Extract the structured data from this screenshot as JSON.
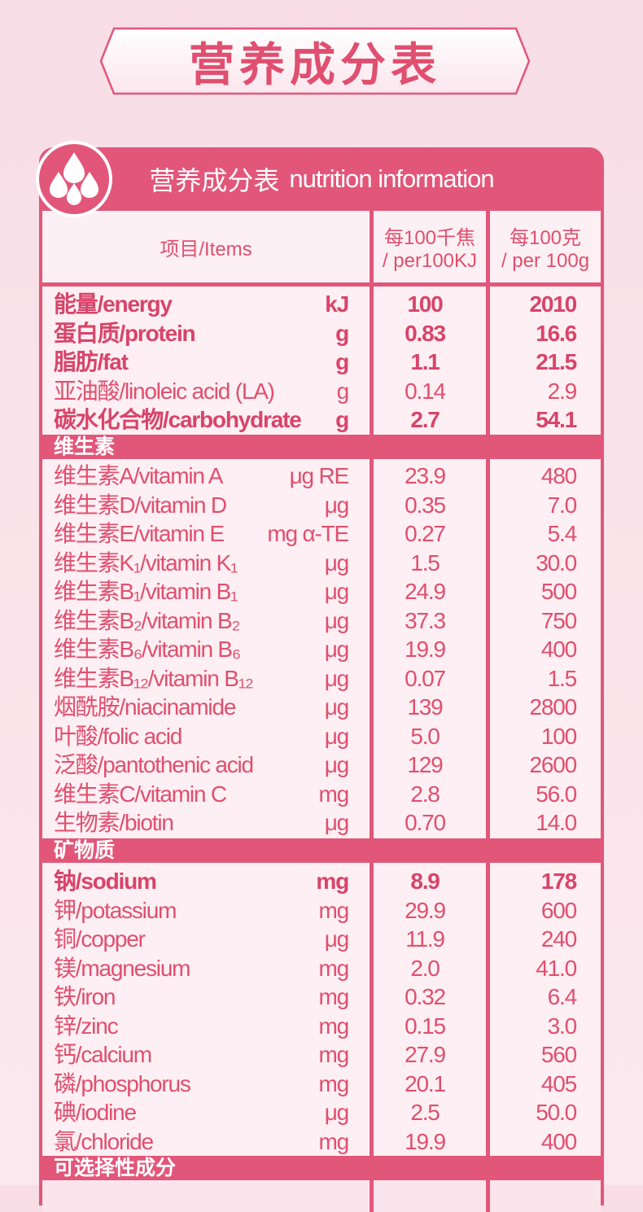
{
  "banner": {
    "title": "营养成分表"
  },
  "panel": {
    "title_cn": "营养成分表",
    "title_en": "nutrition information"
  },
  "columns": {
    "items": "项目/Items",
    "per_kj_line1": "每100千焦",
    "per_kj_line2": "/ per100KJ",
    "per_g_line1": "每100克",
    "per_g_line2": "/ per 100g"
  },
  "energy_rows": [
    {
      "name": "能量/energy",
      "unit": "kJ",
      "v1": "100",
      "v2": "2010",
      "bold": true
    },
    {
      "name": "蛋白质/protein",
      "unit": "g",
      "v1": "0.83",
      "v2": "16.6",
      "bold": true
    },
    {
      "name": "脂肪/fat",
      "unit": "g",
      "v1": "1.1",
      "v2": "21.5",
      "bold": true
    },
    {
      "name": "亚油酸/linoleic acid (LA)",
      "unit": "g",
      "v1": "0.14",
      "v2": "2.9",
      "bold": false
    },
    {
      "name": "碳水化合物/carbohydrate",
      "unit": "g",
      "v1": "2.7",
      "v2": "54.1",
      "bold": true
    }
  ],
  "section_vitamins": "维生素",
  "vitamin_rows": [
    {
      "name": "维生素A/vitamin A",
      "unit": "μg RE",
      "v1": "23.9",
      "v2": "480"
    },
    {
      "name": "维生素D/vitamin D",
      "unit": "μg",
      "v1": "0.35",
      "v2": "7.0"
    },
    {
      "name": "维生素E/vitamin E",
      "unit": "mg α-TE",
      "v1": "0.27",
      "v2": "5.4"
    },
    {
      "name": "维生素K₁/vitamin K₁",
      "unit": "μg",
      "v1": "1.5",
      "v2": "30.0"
    },
    {
      "name": "维生素B₁/vitamin B₁",
      "unit": "μg",
      "v1": "24.9",
      "v2": "500"
    },
    {
      "name": "维生素B₂/vitamin B₂",
      "unit": "μg",
      "v1": "37.3",
      "v2": "750"
    },
    {
      "name": "维生素B₆/vitamin B₆",
      "unit": "μg",
      "v1": "19.9",
      "v2": "400"
    },
    {
      "name": "维生素B₁₂/vitamin B₁₂",
      "unit": "μg",
      "v1": "0.07",
      "v2": "1.5"
    },
    {
      "name": "烟酰胺/niacinamide",
      "unit": "μg",
      "v1": "139",
      "v2": "2800"
    },
    {
      "name": "叶酸/folic acid",
      "unit": "μg",
      "v1": "5.0",
      "v2": "100"
    },
    {
      "name": "泛酸/pantothenic acid",
      "unit": "μg",
      "v1": "129",
      "v2": "2600"
    },
    {
      "name": "维生素C/vitamin C",
      "unit": "mg",
      "v1": "2.8",
      "v2": "56.0"
    },
    {
      "name": "生物素/biotin",
      "unit": "μg",
      "v1": "0.70",
      "v2": "14.0"
    }
  ],
  "section_minerals": "矿物质",
  "mineral_rows": [
    {
      "name": "钠/sodium",
      "unit": "mg",
      "v1": "8.9",
      "v2": "178",
      "bold": true
    },
    {
      "name": "钾/potassium",
      "unit": "mg",
      "v1": "29.9",
      "v2": "600"
    },
    {
      "name": "铜/copper",
      "unit": "μg",
      "v1": "11.9",
      "v2": "240"
    },
    {
      "name": "镁/magnesium",
      "unit": "mg",
      "v1": "2.0",
      "v2": "41.0"
    },
    {
      "name": "铁/iron",
      "unit": "mg",
      "v1": "0.32",
      "v2": "6.4"
    },
    {
      "name": "锌/zinc",
      "unit": "mg",
      "v1": "0.15",
      "v2": "3.0"
    },
    {
      "name": "钙/calcium",
      "unit": "mg",
      "v1": "27.9",
      "v2": "560"
    },
    {
      "name": "磷/phosphorus",
      "unit": "mg",
      "v1": "20.1",
      "v2": "405"
    },
    {
      "name": "碘/iodine",
      "unit": "μg",
      "v1": "2.5",
      "v2": "50.0"
    },
    {
      "name": "氯/chloride",
      "unit": "mg",
      "v1": "19.9",
      "v2": "400"
    }
  ],
  "section_optional": "可选择性成分",
  "colors": {
    "primary": "#e2567a",
    "text": "#e04f6f",
    "background": "#f9e3ea"
  }
}
